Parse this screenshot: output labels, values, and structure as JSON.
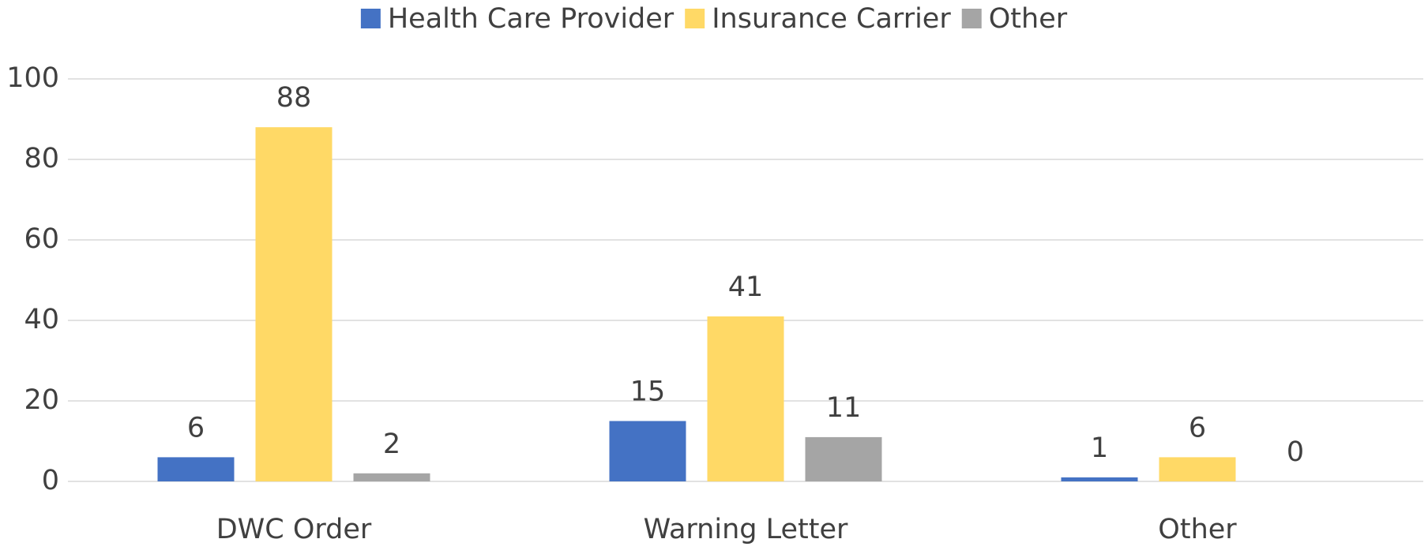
{
  "chart_data": {
    "type": "bar",
    "categories": [
      "DWC Order",
      "Warning Letter",
      "Other"
    ],
    "series": [
      {
        "name": "Health Care Provider",
        "color": "#4472c4",
        "values": [
          6,
          15,
          1
        ]
      },
      {
        "name": "Insurance Carrier",
        "color": "#ffd966",
        "values": [
          88,
          41,
          6
        ]
      },
      {
        "name": "Other",
        "color": "#a5a5a5",
        "values": [
          2,
          11,
          0
        ]
      }
    ],
    "ylim": [
      0,
      100
    ],
    "yticks": [
      0,
      20,
      40,
      60,
      80,
      100
    ],
    "grid": true,
    "legend": "top"
  }
}
